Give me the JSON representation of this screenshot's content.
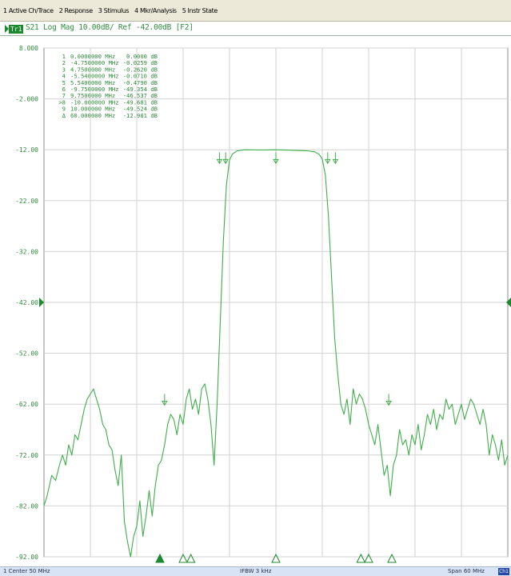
{
  "menu": {
    "items": [
      "1 Active Ch/Trace",
      "2 Response",
      "3 Stimulus",
      "4 Mkr/Analysis",
      "5 Instr State"
    ]
  },
  "trace": {
    "id": "Tr1",
    "label": "S21 Log Mag 10.00dB/ Ref -42.00dB [F2]",
    "color": "#3fae4a"
  },
  "markers": [
    {
      "num": "1",
      "freq": "0.0000000 MHz",
      "value": "0.0000 dB"
    },
    {
      "num": "2",
      "freq": "-4.7500000 MHz",
      "value": "-0.0259 dB"
    },
    {
      "num": "3",
      "freq": "4.7500000 MHz",
      "value": "-0.2620 dB"
    },
    {
      "num": "4",
      "freq": "-5.5400000 MHz",
      "value": "-0.0710 dB"
    },
    {
      "num": "5",
      "freq": "5.5400000 MHz",
      "value": "-0.4790 dB"
    },
    {
      "num": "6",
      "freq": "-9.7500000 MHz",
      "value": "-49.354 dB"
    },
    {
      "num": "7",
      "freq": "9.7500000 MHz",
      "value": "-46.537 dB"
    },
    {
      "num": ">8",
      "freq": "-10.000000 MHz",
      "value": "-49.681 dB"
    },
    {
      "num": "9",
      "freq": "10.000000 MHz",
      "value": "-49.524 dB"
    },
    {
      "num": "Δ",
      "freq": "60.000000 MHz",
      "value": "-12.901 dB"
    }
  ],
  "chart_data": {
    "type": "line",
    "ylabel_ticks": [
      "8.000",
      "-2.000",
      "-12.00",
      "-22.00",
      "-32.00",
      "-42.00",
      "-52.00",
      "-62.00",
      "-72.00",
      "-82.00",
      "-92.00"
    ],
    "y_ticks": [
      8,
      -2,
      -12,
      -22,
      -32,
      -42,
      -52,
      -62,
      -72,
      -82,
      -92
    ],
    "ylim": [
      -92,
      8
    ],
    "xlim": [
      -30,
      30
    ],
    "reference_level": -42,
    "grid": true,
    "series": [
      {
        "x": [
          -30,
          -29.6,
          -29.0,
          -28.5,
          -28.0,
          -27.6,
          -27.2,
          -26.8,
          -26.4,
          -26.0,
          -25.6,
          -25.2,
          -24.8,
          -24.4,
          -24.0,
          -23.6,
          -23.2,
          -22.8,
          -22.4,
          -22.0,
          -21.6,
          -21.2,
          -20.8,
          -20.4,
          -20.0,
          -19.6,
          -19.2,
          -18.8,
          -18.4,
          -18.0,
          -17.6,
          -17.2,
          -16.8,
          -16.4,
          -16.0,
          -15.6,
          -15.2,
          -14.8,
          -14.4,
          -14.0,
          -13.6,
          -13.2,
          -12.8,
          -12.4,
          -12.0,
          -11.6,
          -11.2,
          -10.8,
          -10.4,
          -10.0,
          -9.6,
          -9.2,
          -8.8,
          -8.4,
          -8.0,
          -7.6,
          -7.2,
          -6.8,
          -6.4,
          -6.0,
          -5.6,
          -5.0,
          -4.0,
          -2.0,
          0.0,
          2.0,
          4.0,
          5.0,
          5.6,
          6.0,
          6.4,
          6.8,
          7.2,
          7.6,
          8.0,
          8.4,
          8.8,
          9.2,
          9.6,
          10.0,
          10.4,
          10.8,
          11.2,
          11.6,
          12.0,
          12.4,
          12.8,
          13.2,
          13.6,
          14.0,
          14.4,
          14.8,
          15.2,
          15.6,
          16.0,
          16.4,
          16.8,
          17.2,
          17.6,
          18.0,
          18.4,
          18.8,
          19.2,
          19.6,
          20.0,
          20.4,
          20.8,
          21.2,
          21.6,
          22.0,
          22.4,
          22.8,
          23.2,
          23.6,
          24.0,
          24.4,
          24.8,
          25.2,
          25.6,
          26.0,
          26.4,
          26.8,
          27.2,
          27.6,
          28.0,
          28.4,
          28.8,
          29.2,
          29.6,
          30.0
        ],
        "y": [
          -82,
          -80,
          -76,
          -77,
          -74,
          -72,
          -74,
          -70,
          -72,
          -68,
          -69,
          -66,
          -63,
          -61,
          -60,
          -59,
          -61,
          -63,
          -66,
          -67,
          -70,
          -71,
          -75,
          -78,
          -72,
          -85,
          -89,
          -92,
          -88,
          -86,
          -81,
          -88,
          -84,
          -79,
          -84,
          -78,
          -74,
          -73,
          -70,
          -66,
          -64,
          -65,
          -68,
          -64,
          -66,
          -61,
          -59,
          -63,
          -61,
          -64,
          -59,
          -58,
          -61,
          -66,
          -74,
          -62,
          -46,
          -30,
          -19,
          -14,
          -12.8,
          -12.2,
          -12.0,
          -12.05,
          -12.0,
          -12.1,
          -12.2,
          -12.4,
          -12.9,
          -13.8,
          -17,
          -25,
          -37,
          -49,
          -56,
          -62,
          -64,
          -61,
          -66,
          -59,
          -62,
          -60,
          -61,
          -63,
          -66,
          -68,
          -70,
          -66,
          -71,
          -76,
          -74,
          -80,
          -74,
          -72,
          -67,
          -70,
          -69,
          -72,
          -68,
          -70,
          -66,
          -71,
          -68,
          -64,
          -66,
          -63,
          -67,
          -64,
          -65,
          -61,
          -63,
          -62,
          -66,
          -64,
          -62,
          -65,
          -63,
          -61,
          -62,
          -64,
          -66,
          -63,
          -66,
          -72,
          -68,
          -70,
          -73,
          -69,
          -74,
          -72
        ]
      }
    ],
    "stimulus_triangles": [
      -15,
      -12,
      -11,
      0,
      11,
      12,
      15
    ]
  },
  "status": {
    "left": "1 Center 50 MHz",
    "middle": "IFBW 3 kHz",
    "right": "Span 60 MHz",
    "button": "Ch1"
  }
}
